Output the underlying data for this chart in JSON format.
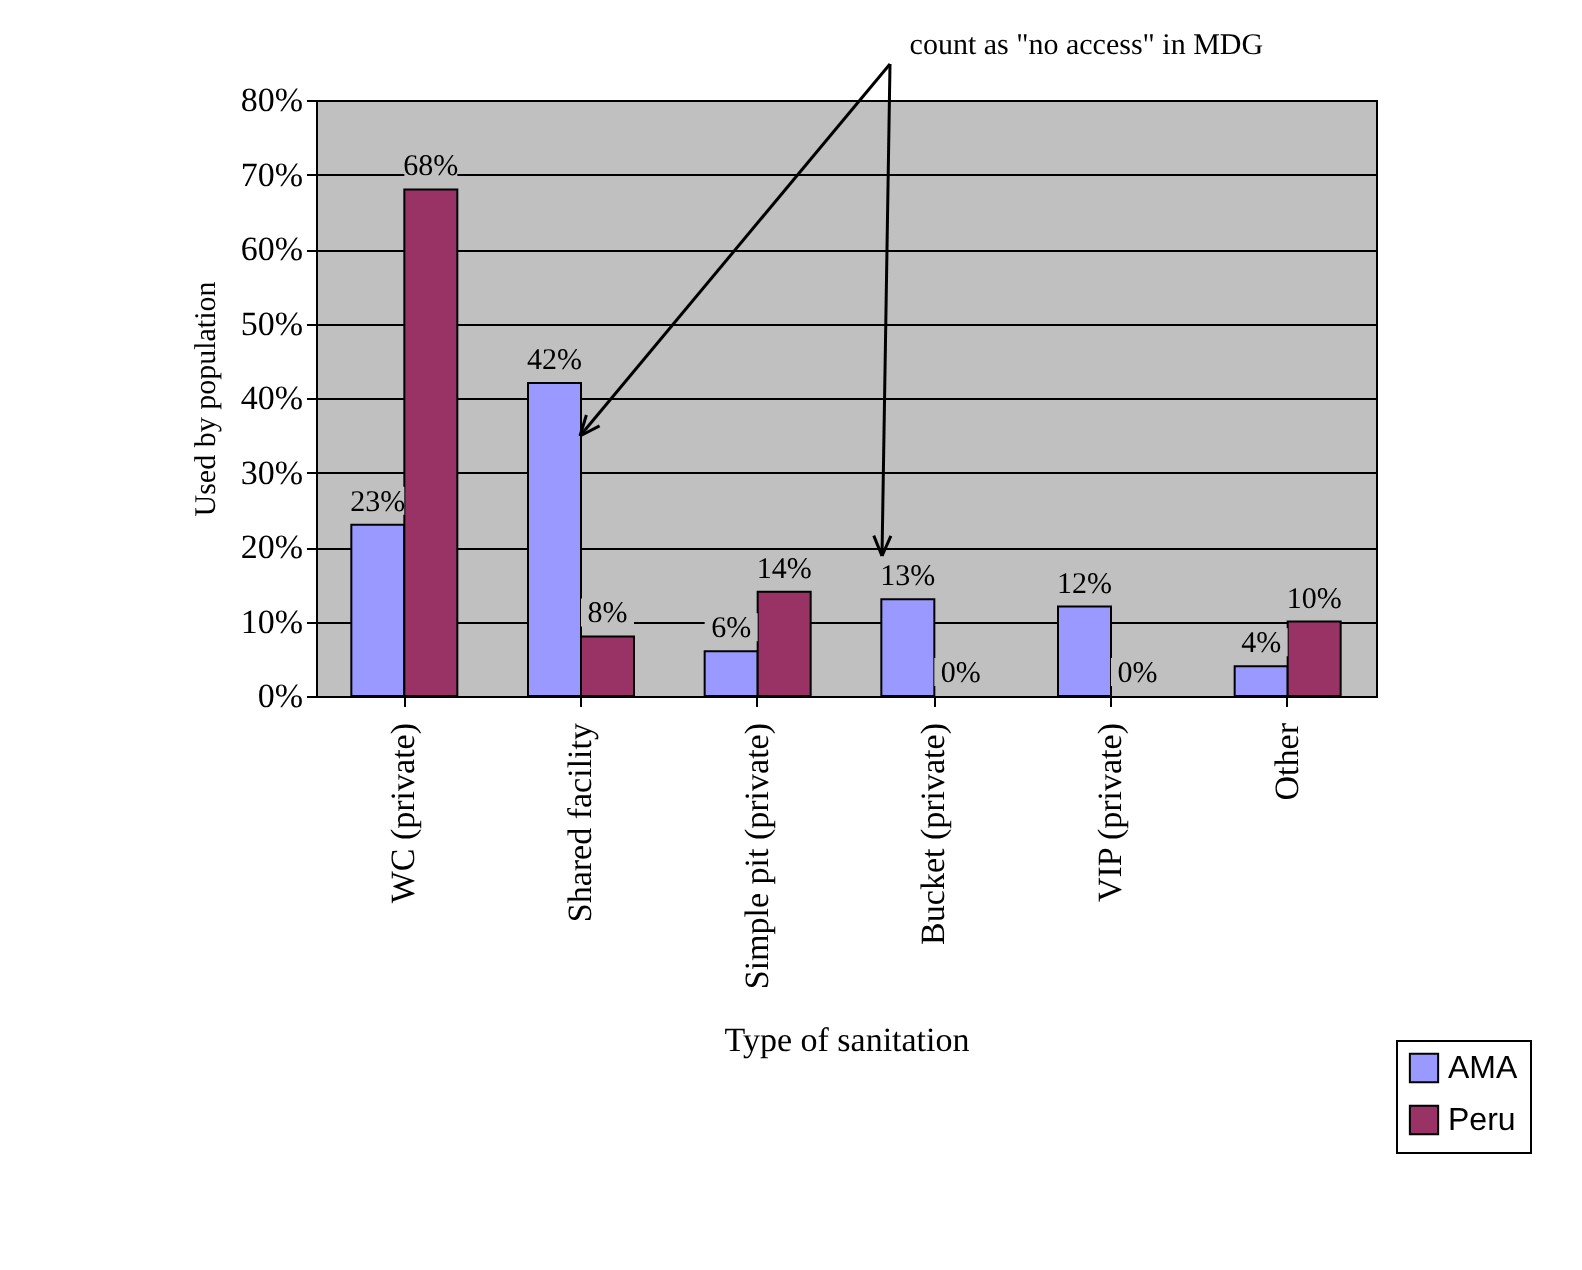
{
  "chart_data": {
    "type": "bar",
    "xlabel": "Type of sanitation",
    "ylabel": "Used by population",
    "categories": [
      "WC (private)",
      "Shared facility",
      "Simple pit (private)",
      "Bucket (private)",
      "VIP (private)",
      "Other"
    ],
    "series": [
      {
        "name": "AMA",
        "color": "#9999ff",
        "values": [
          23,
          42,
          6,
          13,
          12,
          4
        ],
        "value_labels": [
          "23%",
          "42%",
          "6%",
          "13%",
          "12%",
          "4%"
        ]
      },
      {
        "name": "Peru",
        "color": "#993366",
        "values": [
          68,
          8,
          14,
          0,
          0,
          10
        ],
        "value_labels": [
          "68%",
          "8%",
          "14%",
          "0%",
          "0%",
          "10%"
        ]
      }
    ],
    "ylim": [
      0,
      80
    ],
    "yticks": [
      {
        "value": 0,
        "label": "0%"
      },
      {
        "value": 10,
        "label": "10%"
      },
      {
        "value": 20,
        "label": "20%"
      },
      {
        "value": 30,
        "label": "30%"
      },
      {
        "value": 40,
        "label": "40%"
      },
      {
        "value": 50,
        "label": "50%"
      },
      {
        "value": 60,
        "label": "60%"
      },
      {
        "value": 70,
        "label": "70%"
      },
      {
        "value": 80,
        "label": "80%"
      }
    ],
    "grid": "y",
    "legend": "bottom right",
    "annotations": [
      "count as \"no access\" in MDG"
    ]
  }
}
